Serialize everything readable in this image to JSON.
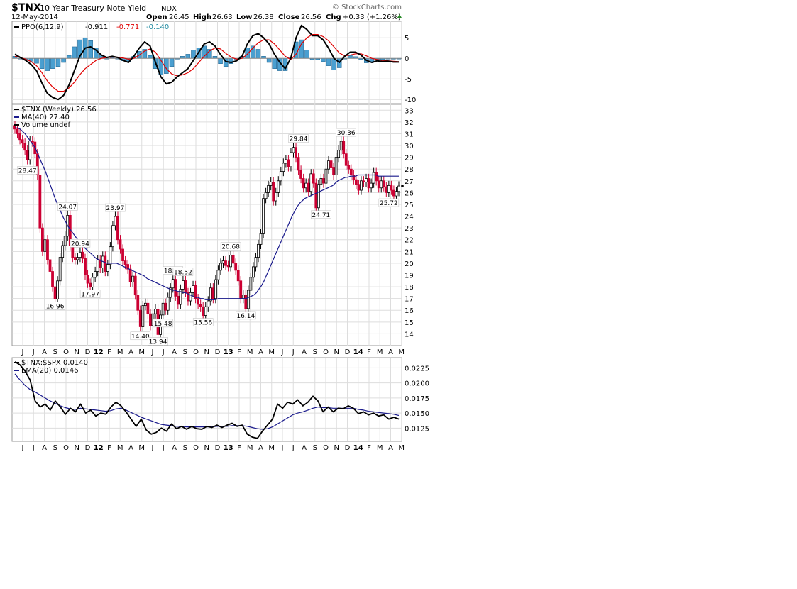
{
  "header": {
    "symbol": "$TNX",
    "name": "10 Year Treasury Note Yield",
    "exchange": "INDX",
    "date": "12-May-2014",
    "open_label": "Open",
    "open": "26.45",
    "high_label": "High",
    "high": "26.63",
    "low_label": "Low",
    "low": "26.38",
    "close_label": "Close",
    "close": "26.56",
    "chg_label": "Chg",
    "chg": "+0.33 (+1.26%)",
    "watermark": "© StockCharts.com"
  },
  "colors": {
    "up": "#000000",
    "down": "#cc0033",
    "ma": "#1a1a8c",
    "ppo_line": "#000000",
    "ppo_signal": "#e00000",
    "ppo_hist": "#4a9fd0",
    "ppo_hist_stroke": "#1f5f8a",
    "grid": "#dddddd",
    "chg_arrow": "#2a8a2a"
  },
  "chart_data": [
    {
      "panel": "ppo",
      "type": "line",
      "legend": [
        "PPO(6,12,9)",
        "-0.911",
        "-0.771",
        "-0.140"
      ],
      "ylim": [
        -11,
        9
      ],
      "y_ticks": [
        5,
        0,
        -5,
        -10
      ],
      "series": [
        {
          "name": "PPO(6,12,9)",
          "y": [
            1.0,
            0.2,
            -0.5,
            -1.5,
            -3.0,
            -6.0,
            -8.5,
            -9.5,
            -10.0,
            -9.0,
            -6.5,
            -3.0,
            0.5,
            2.5,
            2.8,
            2.0,
            0.8,
            0.2,
            0.5,
            0.2,
            -0.5,
            -1.0,
            0.5,
            2.5,
            4.0,
            3.0,
            -1.0,
            -4.5,
            -6.2,
            -5.8,
            -4.5,
            -3.5,
            -2.5,
            -0.5,
            1.5,
            3.5,
            4.0,
            3.0,
            1.0,
            -0.8,
            -1.0,
            -0.6,
            0.5,
            3.5,
            5.5,
            6.0,
            5.0,
            3.5,
            1.0,
            -1.0,
            -2.5,
            0.0,
            5.0,
            8.0,
            7.0,
            5.5,
            5.5,
            4.5,
            2.5,
            0.0,
            -1.0,
            0.5,
            1.5,
            1.5,
            0.8,
            -0.5,
            -1.0,
            -0.6,
            -0.8,
            -0.7,
            -0.9,
            -0.9
          ]
        },
        {
          "name": "signal",
          "y": [
            0.5,
            0.2,
            -0.2,
            -0.8,
            -1.8,
            -3.5,
            -5.5,
            -7.0,
            -8.0,
            -8.0,
            -7.2,
            -5.8,
            -4.0,
            -2.5,
            -1.5,
            -0.5,
            0.0,
            0.2,
            0.3,
            0.3,
            0.1,
            -0.2,
            0.0,
            0.8,
            1.8,
            2.3,
            1.5,
            -0.5,
            -2.5,
            -3.8,
            -4.3,
            -4.0,
            -3.5,
            -2.5,
            -1.0,
            0.5,
            1.8,
            2.5,
            2.3,
            1.2,
            0.3,
            -0.2,
            0.0,
            1.0,
            2.5,
            3.8,
            4.5,
            4.5,
            3.5,
            2.0,
            0.5,
            -0.3,
            1.0,
            3.5,
            5.0,
            5.8,
            5.8,
            5.3,
            4.3,
            2.8,
            1.3,
            0.6,
            0.8,
            1.1,
            1.1,
            0.6,
            0.0,
            -0.3,
            -0.5,
            -0.6,
            -0.7,
            -0.8
          ]
        }
      ]
    },
    {
      "panel": "price",
      "type": "candlestick",
      "legend": [
        "$TNX (Weekly) 26.56",
        "MA(40) 27.40",
        "Volume undef"
      ],
      "ylim": [
        13,
        33.5
      ],
      "y_ticks": [
        33,
        32,
        31,
        30,
        29,
        28,
        27,
        26,
        25,
        24,
        23,
        22,
        21,
        20,
        19,
        18,
        17,
        16,
        15,
        14
      ],
      "x_tick_labels": [
        "J",
        "J",
        "A",
        "S",
        "O",
        "N",
        "D",
        "12",
        "F",
        "M",
        "A",
        "M",
        "J",
        "J",
        "A",
        "S",
        "O",
        "N",
        "D",
        "13",
        "F",
        "M",
        "A",
        "M",
        "J",
        "J",
        "A",
        "S",
        "O",
        "N",
        "D",
        "14",
        "F",
        "M",
        "A",
        "M"
      ],
      "close": [
        31.4,
        31.0,
        30.5,
        30.2,
        29.6,
        28.8,
        30.4,
        30.3,
        29.3,
        27.5,
        23.0,
        21.0,
        22.0,
        20.3,
        19.3,
        18.0,
        16.96,
        18.5,
        20.5,
        21.5,
        22.3,
        24.07,
        21.5,
        20.5,
        20.3,
        20.5,
        20.94,
        20.4,
        19.0,
        18.3,
        17.97,
        18.8,
        19.3,
        20.3,
        19.6,
        20.6,
        19.3,
        19.9,
        21.4,
        23.2,
        23.97,
        22.0,
        21.2,
        20.2,
        19.9,
        19.5,
        18.4,
        18.9,
        17.3,
        16.0,
        14.6,
        16.4,
        16.6,
        15.7,
        14.7,
        15.7,
        16.1,
        13.94,
        15.6,
        16.6,
        16.0,
        17.1,
        17.9,
        18.63,
        17.2,
        16.5,
        17.8,
        18.52,
        17.5,
        16.8,
        17.5,
        18.1,
        17.0,
        16.5,
        16.3,
        15.56,
        16.3,
        16.8,
        17.9,
        17.0,
        18.6,
        19.4,
        20.0,
        20.2,
        19.8,
        19.7,
        20.68,
        20.0,
        19.4,
        18.5,
        17.0,
        17.3,
        16.14,
        17.7,
        18.8,
        19.7,
        20.5,
        21.6,
        22.5,
        25.5,
        26.0,
        26.6,
        26.9,
        25.3,
        26.0,
        27.0,
        27.8,
        28.5,
        28.8,
        28.2,
        29.4,
        29.84,
        29.0,
        27.9,
        27.2,
        26.4,
        26.8,
        26.1,
        27.6,
        26.8,
        24.71,
        26.7,
        27.2,
        26.8,
        28.0,
        28.7,
        28.1,
        27.5,
        29.0,
        29.6,
        30.36,
        29.3,
        28.3,
        28.0,
        27.5,
        27.1,
        26.7,
        26.2,
        27.0,
        26.9,
        27.2,
        26.4,
        26.8,
        27.7,
        27.0,
        26.4,
        27.0,
        26.5,
        26.0,
        26.6,
        26.2,
        25.72,
        26.1,
        26.56
      ],
      "series": [
        {
          "name": "MA(40)",
          "y": [
            31.5,
            31.5,
            31.4,
            31.2,
            31.0,
            30.7,
            30.4,
            30.1,
            29.8,
            29.3,
            28.8,
            28.3,
            27.8,
            27.2,
            26.6,
            26.0,
            25.4,
            24.9,
            24.4,
            23.9,
            23.5,
            23.1,
            22.8,
            22.5,
            22.2,
            21.9,
            21.6,
            21.4,
            21.2,
            21.0,
            20.8,
            20.6,
            20.4,
            20.3,
            20.2,
            20.1,
            20.0,
            20.0,
            20.0,
            20.0,
            20.0,
            19.9,
            19.8,
            19.7,
            19.6,
            19.5,
            19.4,
            19.3,
            19.2,
            19.1,
            19.0,
            18.9,
            18.7,
            18.6,
            18.5,
            18.4,
            18.3,
            18.2,
            18.1,
            18.0,
            17.9,
            17.8,
            17.7,
            17.7,
            17.6,
            17.6,
            17.5,
            17.5,
            17.4,
            17.3,
            17.2,
            17.1,
            17.1,
            17.0,
            17.0,
            16.9,
            16.9,
            16.9,
            16.9,
            16.9,
            17.0,
            17.0,
            17.0,
            17.0,
            17.0,
            17.0,
            17.0,
            17.0,
            17.0,
            17.0,
            17.0,
            17.0,
            17.1,
            17.2,
            17.3,
            17.5,
            17.8,
            18.1,
            18.5,
            19.0,
            19.5,
            20.0,
            20.5,
            21.0,
            21.5,
            22.0,
            22.5,
            23.0,
            23.5,
            24.0,
            24.4,
            24.8,
            25.1,
            25.3,
            25.5,
            25.6,
            25.7,
            25.8,
            25.9,
            26.0,
            26.1,
            26.2,
            26.3,
            26.4,
            26.5,
            26.6,
            26.8,
            27.0,
            27.1,
            27.2,
            27.3,
            27.3,
            27.4,
            27.4,
            27.4,
            27.5,
            27.5,
            27.5,
            27.5,
            27.5,
            27.5,
            27.5,
            27.5,
            27.4,
            27.4,
            27.4,
            27.4,
            27.4,
            27.4,
            27.4,
            27.4,
            27.4
          ]
        }
      ],
      "annotations": [
        {
          "i": 5,
          "value": 28.47,
          "label": "28.47",
          "pos": "below"
        },
        {
          "i": 16,
          "value": 16.96,
          "label": "16.96",
          "pos": "below"
        },
        {
          "i": 21,
          "value": 24.07,
          "label": "24.07",
          "pos": "above"
        },
        {
          "i": 30,
          "value": 17.97,
          "label": "17.97",
          "pos": "below"
        },
        {
          "i": 26,
          "value": 20.94,
          "label": "20.94",
          "pos": "above"
        },
        {
          "i": 40,
          "value": 23.97,
          "label": "23.97",
          "pos": "above"
        },
        {
          "i": 50,
          "value": 14.4,
          "label": "14.40",
          "pos": "below"
        },
        {
          "i": 57,
          "value": 13.94,
          "label": "13.94",
          "pos": "below"
        },
        {
          "i": 63,
          "value": 18.63,
          "label": "18.63",
          "pos": "above"
        },
        {
          "i": 59,
          "value": 15.48,
          "label": "15.48",
          "pos": "below"
        },
        {
          "i": 67,
          "value": 18.52,
          "label": "18.52",
          "pos": "above"
        },
        {
          "i": 75,
          "value": 15.56,
          "label": "15.56",
          "pos": "below"
        },
        {
          "i": 86,
          "value": 20.68,
          "label": "20.68",
          "pos": "above"
        },
        {
          "i": 92,
          "value": 16.14,
          "label": "16.14",
          "pos": "below"
        },
        {
          "i": 113,
          "value": 29.84,
          "label": "29.84",
          "pos": "above"
        },
        {
          "i": 122,
          "value": 24.71,
          "label": "24.71",
          "pos": "below"
        },
        {
          "i": 132,
          "value": 30.36,
          "label": "30.36",
          "pos": "above"
        },
        {
          "i": 149,
          "value": 25.72,
          "label": "25.72",
          "pos": "below"
        }
      ]
    },
    {
      "panel": "ratio",
      "type": "line",
      "legend": [
        "$TNX:$SPX 0.0140",
        "EMA(20) 0.0146"
      ],
      "ylim": [
        0.0103,
        0.0242
      ],
      "y_ticks": [
        0.0225,
        0.02,
        0.0175,
        0.015,
        0.0125
      ],
      "y_tick_labels": [
        "0.0225",
        "0.0200",
        "0.0175",
        "0.0150",
        "0.0125"
      ],
      "x_tick_labels": [
        "J",
        "J",
        "A",
        "S",
        "O",
        "N",
        "D",
        "12",
        "F",
        "M",
        "A",
        "M",
        "J",
        "J",
        "A",
        "S",
        "O",
        "N",
        "D",
        "13",
        "F",
        "M",
        "A",
        "M",
        "J",
        "J",
        "A",
        "S",
        "O",
        "N",
        "D",
        "14",
        "F",
        "M",
        "A",
        "M"
      ],
      "series": [
        {
          "name": "$TNX:$SPX",
          "y": [
            0.0235,
            0.023,
            0.022,
            0.0205,
            0.017,
            0.016,
            0.0165,
            0.0155,
            0.017,
            0.016,
            0.0148,
            0.0158,
            0.0152,
            0.0165,
            0.015,
            0.0155,
            0.0145,
            0.015,
            0.0148,
            0.016,
            0.0168,
            0.0162,
            0.0152,
            0.014,
            0.0128,
            0.014,
            0.0122,
            0.0115,
            0.0118,
            0.0125,
            0.012,
            0.0132,
            0.0124,
            0.0128,
            0.0123,
            0.0128,
            0.0124,
            0.0123,
            0.0128,
            0.0126,
            0.013,
            0.0126,
            0.013,
            0.0133,
            0.0128,
            0.013,
            0.0115,
            0.011,
            0.0108,
            0.012,
            0.013,
            0.014,
            0.0165,
            0.0158,
            0.0168,
            0.0165,
            0.0172,
            0.0162,
            0.0168,
            0.0178,
            0.017,
            0.0152,
            0.016,
            0.0152,
            0.0158,
            0.0157,
            0.0162,
            0.0158,
            0.0149,
            0.0152,
            0.0147,
            0.015,
            0.0145,
            0.0147,
            0.014,
            0.0143,
            0.014
          ]
        },
        {
          "name": "EMA(20)",
          "y": [
            0.0215,
            0.0205,
            0.0196,
            0.0189,
            0.0185,
            0.018,
            0.0175,
            0.017,
            0.0166,
            0.0162,
            0.0159,
            0.0157,
            0.0156,
            0.0158,
            0.0157,
            0.0156,
            0.0155,
            0.0154,
            0.0153,
            0.0154,
            0.0157,
            0.0158,
            0.0155,
            0.0151,
            0.0147,
            0.0143,
            0.014,
            0.0137,
            0.0134,
            0.0131,
            0.013,
            0.0129,
            0.0128,
            0.0128,
            0.0127,
            0.0127,
            0.0127,
            0.0127,
            0.0127,
            0.0127,
            0.0128,
            0.0128,
            0.0128,
            0.0129,
            0.0129,
            0.0129,
            0.0128,
            0.0126,
            0.0124,
            0.0123,
            0.0124,
            0.0127,
            0.0132,
            0.0137,
            0.0142,
            0.0147,
            0.015,
            0.0152,
            0.0155,
            0.0158,
            0.016,
            0.0159,
            0.0159,
            0.0158,
            0.0158,
            0.0158,
            0.0158,
            0.0158,
            0.0156,
            0.0155,
            0.0153,
            0.0152,
            0.0151,
            0.015,
            0.0149,
            0.0148,
            0.0146
          ]
        }
      ]
    }
  ]
}
